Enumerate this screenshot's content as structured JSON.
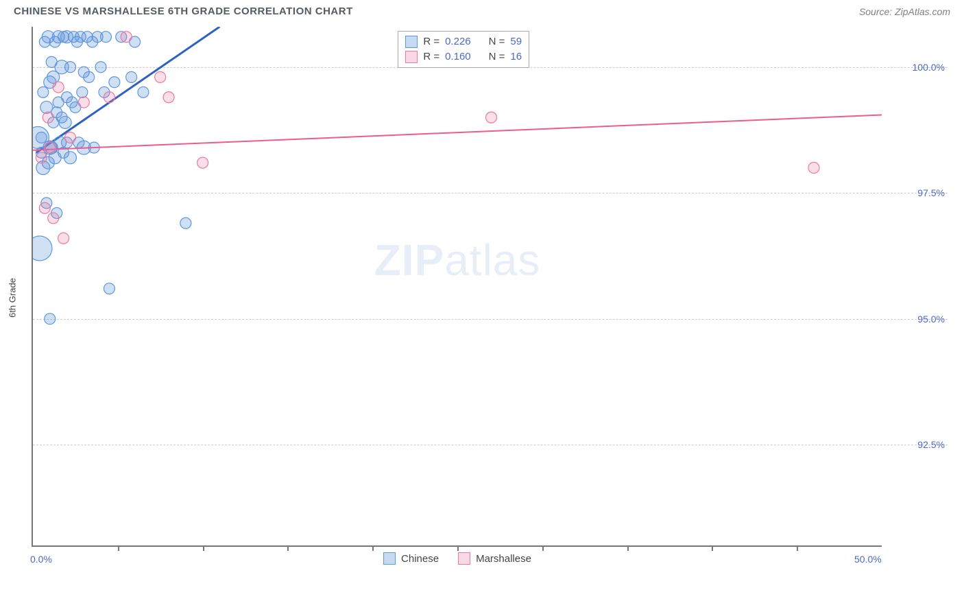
{
  "title": "CHINESE VS MARSHALLESE 6TH GRADE CORRELATION CHART",
  "source": "Source: ZipAtlas.com",
  "y_axis_label": "6th Grade",
  "watermark_bold": "ZIP",
  "watermark_light": "atlas",
  "chart": {
    "type": "scatter",
    "background_color": "#ffffff",
    "grid_color": "#cccccc",
    "axis_color": "#777777",
    "label_color": "#4a68c9",
    "xlim": [
      0.0,
      50.0
    ],
    "ylim": [
      90.5,
      100.8
    ],
    "x_end_labels": [
      {
        "value": 0.0,
        "text": "0.0%"
      },
      {
        "value": 50.0,
        "text": "50.0%"
      }
    ],
    "x_tick_marks": [
      5,
      10,
      15,
      20,
      25,
      30,
      35,
      40,
      45
    ],
    "y_gridlines": [
      {
        "value": 100.0,
        "text": "100.0%"
      },
      {
        "value": 97.5,
        "text": "97.5%"
      },
      {
        "value": 95.0,
        "text": "95.0%"
      },
      {
        "value": 92.5,
        "text": "92.5%"
      }
    ],
    "series": {
      "chinese": {
        "label": "Chinese",
        "fill": "rgba(95,150,220,0.30)",
        "stroke": "#5f96dc",
        "line_color": "#2f61c4",
        "line_width": 3,
        "R": "0.226",
        "N": "59",
        "points": [
          {
            "x": 0.3,
            "y": 98.6,
            "r": 16
          },
          {
            "x": 0.4,
            "y": 96.4,
            "r": 18
          },
          {
            "x": 0.5,
            "y": 98.3,
            "r": 8
          },
          {
            "x": 0.5,
            "y": 98.6,
            "r": 8
          },
          {
            "x": 0.6,
            "y": 99.5,
            "r": 8
          },
          {
            "x": 0.6,
            "y": 98.0,
            "r": 10
          },
          {
            "x": 0.7,
            "y": 100.5,
            "r": 8
          },
          {
            "x": 0.8,
            "y": 99.2,
            "r": 9
          },
          {
            "x": 0.8,
            "y": 97.3,
            "r": 8
          },
          {
            "x": 0.9,
            "y": 100.6,
            "r": 9
          },
          {
            "x": 0.9,
            "y": 98.1,
            "r": 9
          },
          {
            "x": 1.0,
            "y": 99.7,
            "r": 9
          },
          {
            "x": 1.0,
            "y": 98.4,
            "r": 10
          },
          {
            "x": 1.0,
            "y": 95.0,
            "r": 8
          },
          {
            "x": 1.1,
            "y": 100.1,
            "r": 8
          },
          {
            "x": 1.1,
            "y": 98.4,
            "r": 9
          },
          {
            "x": 1.2,
            "y": 99.8,
            "r": 9
          },
          {
            "x": 1.2,
            "y": 98.9,
            "r": 8
          },
          {
            "x": 1.3,
            "y": 100.5,
            "r": 8
          },
          {
            "x": 1.3,
            "y": 98.2,
            "r": 9
          },
          {
            "x": 1.4,
            "y": 99.1,
            "r": 8
          },
          {
            "x": 1.4,
            "y": 97.1,
            "r": 8
          },
          {
            "x": 1.5,
            "y": 100.6,
            "r": 9
          },
          {
            "x": 1.5,
            "y": 99.3,
            "r": 8
          },
          {
            "x": 1.6,
            "y": 98.5,
            "r": 9
          },
          {
            "x": 1.7,
            "y": 100.0,
            "r": 10
          },
          {
            "x": 1.7,
            "y": 99.0,
            "r": 8
          },
          {
            "x": 1.8,
            "y": 100.6,
            "r": 8
          },
          {
            "x": 1.8,
            "y": 98.3,
            "r": 8
          },
          {
            "x": 1.9,
            "y": 98.9,
            "r": 9
          },
          {
            "x": 2.0,
            "y": 100.6,
            "r": 9
          },
          {
            "x": 2.0,
            "y": 99.4,
            "r": 8
          },
          {
            "x": 2.0,
            "y": 98.5,
            "r": 8
          },
          {
            "x": 2.2,
            "y": 98.2,
            "r": 9
          },
          {
            "x": 2.2,
            "y": 100.0,
            "r": 8
          },
          {
            "x": 2.3,
            "y": 99.3,
            "r": 8
          },
          {
            "x": 2.4,
            "y": 100.6,
            "r": 8
          },
          {
            "x": 2.5,
            "y": 99.2,
            "r": 8
          },
          {
            "x": 2.6,
            "y": 100.5,
            "r": 8
          },
          {
            "x": 2.7,
            "y": 98.5,
            "r": 8
          },
          {
            "x": 2.8,
            "y": 100.6,
            "r": 8
          },
          {
            "x": 2.9,
            "y": 99.5,
            "r": 8
          },
          {
            "x": 3.0,
            "y": 98.4,
            "r": 10
          },
          {
            "x": 3.0,
            "y": 99.9,
            "r": 8
          },
          {
            "x": 3.2,
            "y": 100.6,
            "r": 8
          },
          {
            "x": 3.3,
            "y": 99.8,
            "r": 8
          },
          {
            "x": 3.5,
            "y": 100.5,
            "r": 8
          },
          {
            "x": 3.6,
            "y": 98.4,
            "r": 8
          },
          {
            "x": 3.8,
            "y": 100.6,
            "r": 8
          },
          {
            "x": 4.0,
            "y": 100.0,
            "r": 8
          },
          {
            "x": 4.2,
            "y": 99.5,
            "r": 8
          },
          {
            "x": 4.3,
            "y": 100.6,
            "r": 8
          },
          {
            "x": 4.5,
            "y": 95.6,
            "r": 8
          },
          {
            "x": 4.8,
            "y": 99.7,
            "r": 8
          },
          {
            "x": 5.2,
            "y": 100.6,
            "r": 8
          },
          {
            "x": 5.8,
            "y": 99.8,
            "r": 8
          },
          {
            "x": 6.0,
            "y": 100.5,
            "r": 8
          },
          {
            "x": 6.5,
            "y": 99.5,
            "r": 8
          },
          {
            "x": 9.0,
            "y": 96.9,
            "r": 8
          }
        ],
        "trend": {
          "x1": 0.2,
          "y1": 98.3,
          "x2": 11.0,
          "y2": 100.8
        }
      },
      "marshallese": {
        "label": "Marshallese",
        "fill": "rgba(235,120,160,0.24)",
        "stroke": "#eb78a0",
        "line_color": "#ec5c8c",
        "line_width": 2,
        "R": "0.160",
        "N": "16",
        "points": [
          {
            "x": 0.5,
            "y": 98.2,
            "r": 8
          },
          {
            "x": 0.7,
            "y": 97.2,
            "r": 8
          },
          {
            "x": 0.9,
            "y": 99.0,
            "r": 8
          },
          {
            "x": 1.0,
            "y": 98.4,
            "r": 8
          },
          {
            "x": 1.2,
            "y": 97.0,
            "r": 8
          },
          {
            "x": 1.5,
            "y": 99.6,
            "r": 8
          },
          {
            "x": 1.8,
            "y": 96.6,
            "r": 8
          },
          {
            "x": 2.2,
            "y": 98.6,
            "r": 8
          },
          {
            "x": 3.0,
            "y": 99.3,
            "r": 8
          },
          {
            "x": 4.5,
            "y": 99.4,
            "r": 8
          },
          {
            "x": 5.5,
            "y": 100.6,
            "r": 8
          },
          {
            "x": 7.5,
            "y": 99.8,
            "r": 8
          },
          {
            "x": 8.0,
            "y": 99.4,
            "r": 8
          },
          {
            "x": 10.0,
            "y": 98.1,
            "r": 8
          },
          {
            "x": 27.0,
            "y": 99.0,
            "r": 8
          },
          {
            "x": 46.0,
            "y": 98.0,
            "r": 8
          }
        ],
        "trend": {
          "x1": 0.0,
          "y1": 98.35,
          "x2": 50.0,
          "y2": 99.05
        }
      }
    }
  },
  "legend_labels": {
    "R": "R =",
    "N": "N ="
  }
}
